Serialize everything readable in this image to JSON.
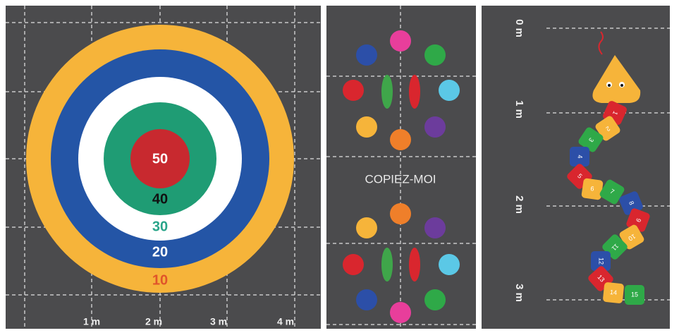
{
  "target": {
    "rings": [
      "50",
      "40",
      "30",
      "20",
      "10"
    ],
    "scale": [
      "1 m",
      "2 m",
      "3 m",
      "4 m"
    ]
  },
  "copy_game": {
    "title": "COPIEZ-MOI"
  },
  "snake": {
    "scale": [
      "0 m",
      "1 m",
      "2 m",
      "3 m"
    ],
    "squares": [
      "1",
      "2",
      "3",
      "4",
      "5",
      "6",
      "7",
      "8",
      "9",
      "10",
      "11",
      "12",
      "13",
      "14",
      "15"
    ]
  }
}
